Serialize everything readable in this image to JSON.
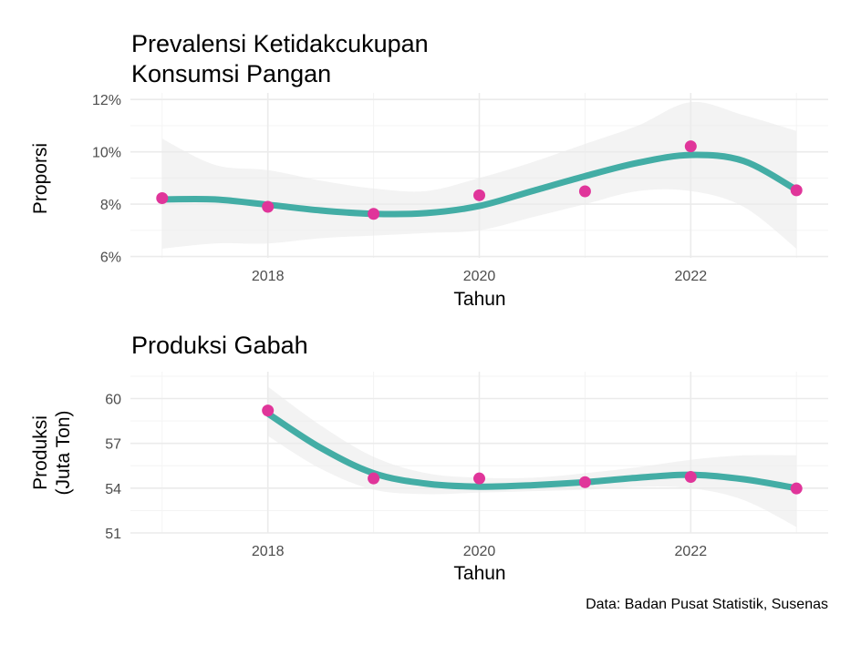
{
  "caption": "Data: Badan Pusat Statistik, Susenas",
  "colors": {
    "points": "#e0359a",
    "trend": "#43ada5",
    "band": "#ebebeb"
  },
  "chart_data": [
    {
      "type": "scatter",
      "title_lines": [
        "Prevalensi Ketidakcukupan",
        "Konsumsi Pangan"
      ],
      "xlabel": "Tahun",
      "ylabel_lines": [
        "Proporsi"
      ],
      "x_ticks": [
        2018,
        2020,
        2022
      ],
      "x_tick_labels": [
        "2018",
        "2020",
        "2022"
      ],
      "y_ticks": [
        6,
        8,
        10,
        12
      ],
      "y_tick_labels": [
        "6%",
        "8%",
        "10%",
        "12%"
      ],
      "xlim": [
        2016.7,
        2023.3
      ],
      "ylim": [
        5.95,
        12.25
      ],
      "grid": true,
      "points": {
        "x": [
          2017,
          2018,
          2019,
          2020,
          2021,
          2022,
          2023
        ],
        "y": [
          8.23,
          7.9,
          7.63,
          8.34,
          8.49,
          10.21,
          8.53
        ]
      },
      "trend": {
        "x": [
          2017,
          2017.5,
          2018,
          2018.5,
          2019,
          2019.5,
          2020,
          2020.5,
          2021,
          2021.5,
          2022,
          2022.5,
          2023
        ],
        "y": [
          8.18,
          8.18,
          7.98,
          7.76,
          7.63,
          7.66,
          7.93,
          8.5,
          9.07,
          9.58,
          9.88,
          9.65,
          8.55
        ],
        "lower": [
          6.3,
          6.5,
          6.5,
          6.7,
          6.8,
          6.9,
          7.0,
          7.5,
          8.0,
          8.5,
          8.5,
          7.9,
          6.3
        ],
        "upper": [
          10.5,
          9.5,
          9.3,
          8.9,
          8.6,
          8.5,
          9.0,
          9.6,
          10.3,
          11.0,
          11.9,
          11.4,
          10.8
        ]
      }
    },
    {
      "type": "scatter",
      "title_lines": [
        "Produksi Gabah"
      ],
      "xlabel": "Tahun",
      "ylabel_lines": [
        "Produksi",
        "(Juta Ton)"
      ],
      "x_ticks": [
        2018,
        2020,
        2022
      ],
      "x_tick_labels": [
        "2018",
        "2020",
        "2022"
      ],
      "y_ticks": [
        51,
        54,
        57,
        60
      ],
      "y_tick_labels": [
        "51",
        "54",
        "57",
        "60"
      ],
      "xlim": [
        2016.7,
        2023.3
      ],
      "ylim": [
        51,
        61.8
      ],
      "grid": true,
      "points": {
        "x": [
          2018,
          2019,
          2020,
          2021,
          2022,
          2023
        ],
        "y": [
          59.2,
          54.65,
          54.65,
          54.4,
          54.75,
          53.98
        ]
      },
      "trend": {
        "x": [
          2018,
          2018.5,
          2019,
          2019.5,
          2020,
          2020.5,
          2021,
          2021.5,
          2022,
          2022.5,
          2023
        ],
        "y": [
          59.0,
          56.7,
          55.0,
          54.3,
          54.1,
          54.2,
          54.4,
          54.7,
          54.9,
          54.6,
          54.0
        ],
        "lower": [
          57.5,
          55.3,
          53.9,
          53.6,
          53.7,
          53.8,
          53.9,
          54.1,
          54.0,
          53.2,
          51.4
        ],
        "upper": [
          60.8,
          58.2,
          56.1,
          55.0,
          54.7,
          54.7,
          55.0,
          55.4,
          55.9,
          56.2,
          56.2
        ]
      }
    }
  ]
}
